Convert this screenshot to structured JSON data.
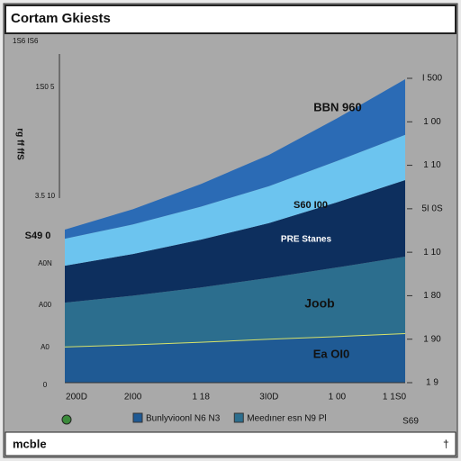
{
  "chart_data": {
    "type": "area",
    "title": "Cortam Gkiests",
    "corner_label": "1S6 IS6",
    "y_axis_label": "rg ff ffS",
    "left_axis_labels": [
      "1S0 5",
      "3.5 10",
      "S49 0",
      "A0N",
      "A00",
      "A0",
      "0"
    ],
    "categories": [
      "200D",
      "2I00",
      "1 18",
      "3I0D",
      "1 00",
      "1 1S0"
    ],
    "series": [
      {
        "name": "Bunlyvioonl N6 N3",
        "color": "#1f5a94",
        "stroke": "#d8e36a",
        "values": [
          83,
          88,
          94,
          101,
          107,
          114
        ]
      },
      {
        "name": "Meedıner esn N9 Pl",
        "color": "#2c6e8e",
        "values": [
          101,
          112,
          125,
          140,
          158,
          176
        ]
      },
      {
        "color": "#0d2f5e",
        "values": [
          85,
          96,
          110,
          126,
          150,
          176
        ]
      },
      {
        "color": "#6cc4ef",
        "values": [
          62,
          68,
          76,
          85,
          95,
          104
        ]
      },
      {
        "color": "#2b6bb5",
        "values": [
          21,
          35,
          52,
          72,
          98,
          128
        ]
      }
    ],
    "ylim": [
      0,
      700
    ],
    "yticks": [
      {
        "value": 0,
        "label": "1 9"
      },
      {
        "value": 100,
        "label": "1 90"
      },
      {
        "value": 200,
        "label": "1 80"
      },
      {
        "value": 300,
        "label": "1 10"
      },
      {
        "value": 400,
        "label": "5I 0S"
      },
      {
        "value": 500,
        "label": "1 10"
      },
      {
        "value": 600,
        "label": "1 00"
      },
      {
        "value": 700,
        "label": "I 500"
      }
    ],
    "annotations": [
      "BBN 960",
      "S60 I00",
      "PRE Stanes",
      "Joob",
      "Ea OI0"
    ],
    "badge": "S69",
    "footer": "mcble",
    "footer_icon": "†"
  }
}
